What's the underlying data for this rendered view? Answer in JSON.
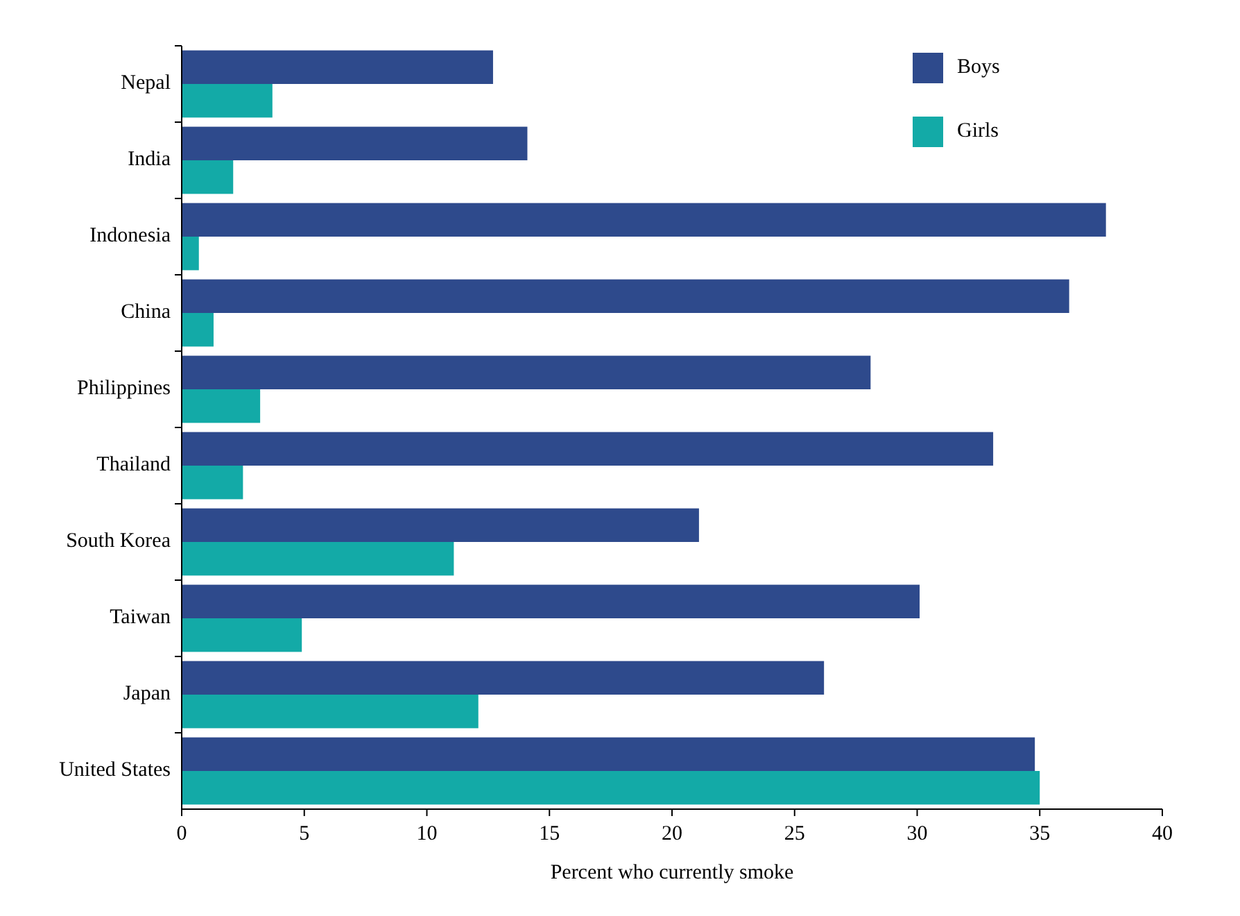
{
  "chart_data": {
    "type": "bar",
    "orientation": "horizontal",
    "xlabel": "Percent who currently smoke",
    "categories": [
      "Nepal",
      "India",
      "Indonesia",
      "China",
      "Philippines",
      "Thailand",
      "South Korea",
      "Taiwan",
      "Japan",
      "United States"
    ],
    "series": [
      {
        "name": "Boys",
        "color": "#2e4a8c",
        "values": [
          12.7,
          14.1,
          37.7,
          36.2,
          28.1,
          33.1,
          21.1,
          30.1,
          26.2,
          34.8
        ]
      },
      {
        "name": "Girls",
        "color": "#13aaa7",
        "values": [
          3.7,
          2.1,
          0.7,
          1.3,
          3.2,
          2.5,
          11.1,
          4.9,
          12.1,
          35.0
        ]
      }
    ],
    "xlim": [
      0,
      40
    ],
    "xticks": [
      0,
      5,
      10,
      15,
      20,
      25,
      30,
      35,
      40
    ],
    "grid": false,
    "legend": "top right"
  }
}
